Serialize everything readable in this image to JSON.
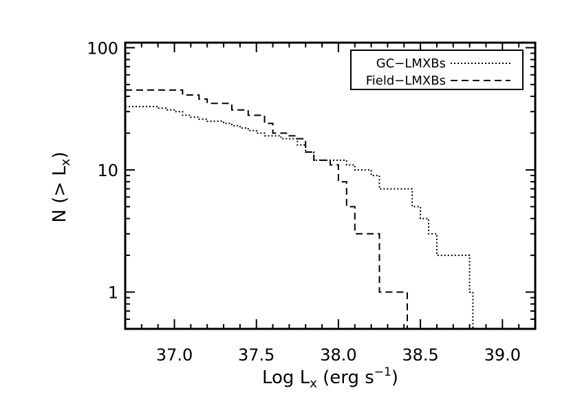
{
  "chart_data": {
    "type": "line",
    "xlabel": {
      "main": "Log L",
      "sub": "x",
      "units": " (erg s",
      "sup": "−1",
      "close": ")"
    },
    "ylabel": {
      "main": "N (> L",
      "sub": "x",
      "close": ")"
    },
    "xlim": [
      36.7,
      39.2
    ],
    "ylim": [
      0.5,
      110
    ],
    "yscale": "log",
    "x_ticks": [
      "37.0",
      "37.5",
      "38.0",
      "38.5",
      "39.0"
    ],
    "x_tick_values": [
      37.0,
      37.5,
      38.0,
      38.5,
      39.0
    ],
    "y_ticks": [
      "1",
      "10",
      "100"
    ],
    "y_tick_values": [
      1,
      10,
      100
    ],
    "legend_position": "top-right",
    "series": [
      {
        "name": "GC−LMXBs",
        "style": "dotted",
        "color": "#000000",
        "x": [
          36.7,
          36.83,
          36.9,
          36.95,
          37.0,
          37.05,
          37.1,
          37.15,
          37.2,
          37.3,
          37.35,
          37.4,
          37.45,
          37.5,
          37.55,
          37.65,
          37.75,
          37.8,
          37.85,
          38.0,
          38.05,
          38.1,
          38.2,
          38.25,
          38.4,
          38.45,
          38.5,
          38.55,
          38.6,
          38.7,
          38.8
        ],
        "y": [
          33,
          33,
          32,
          31,
          30,
          28,
          27,
          26,
          25,
          24,
          23,
          22,
          21,
          20,
          19,
          18,
          16,
          14,
          12,
          12,
          11,
          10,
          9,
          7,
          7,
          5,
          4,
          3,
          2,
          2,
          1
        ]
      },
      {
        "name": "Field−LMXBs",
        "style": "dashed",
        "color": "#000000",
        "x": [
          36.7,
          36.98,
          37.05,
          37.15,
          37.2,
          37.35,
          37.45,
          37.55,
          37.6,
          37.7,
          37.75,
          37.8,
          37.85,
          37.95,
          38.0,
          38.05,
          38.1,
          38.2,
          38.25,
          38.4
        ],
        "y": [
          45,
          45,
          41,
          38,
          35,
          31,
          28,
          24,
          20,
          19,
          18,
          14,
          12,
          11,
          8,
          5,
          3,
          3,
          1,
          1
        ]
      }
    ]
  }
}
